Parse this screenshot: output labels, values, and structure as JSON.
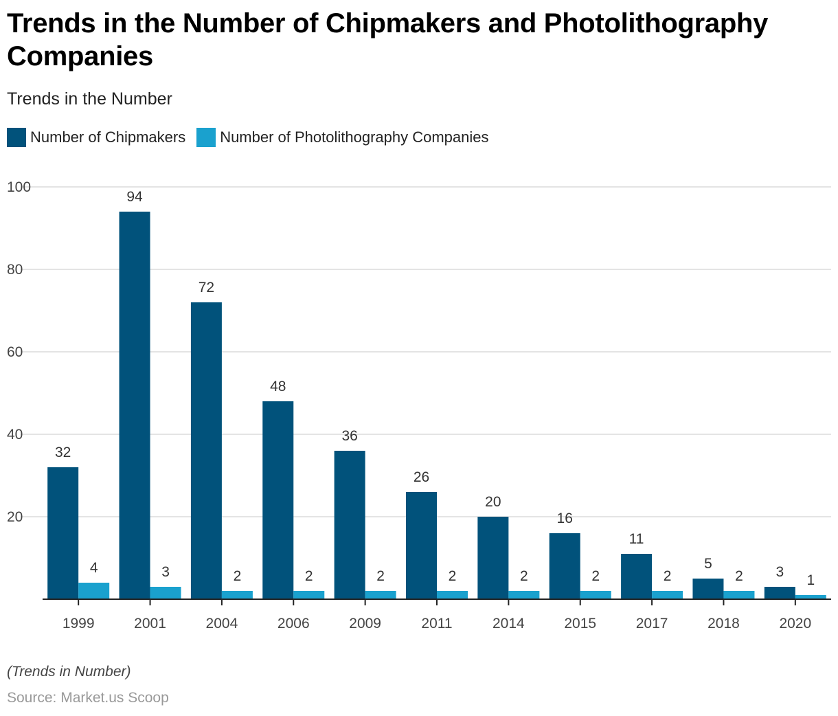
{
  "title": "Trends in the Number of Chipmakers and Photolithography Companies",
  "subtitle": "Trends in the Number",
  "note": "(Trends in Number)",
  "source": "Source: Market.us Scoop",
  "colors": {
    "chipmakers": "#01527b",
    "photolithography": "#1aa1ce",
    "grid": "#dcdcdc",
    "axis": "#222222"
  },
  "chart_data": {
    "type": "bar",
    "title": "Trends in the Number of Chipmakers and Photolithography Companies",
    "subtitle": "Trends in the Number",
    "xlabel": "",
    "ylabel": "",
    "categories": [
      "1999",
      "2001",
      "2004",
      "2006",
      "2009",
      "2011",
      "2014",
      "2015",
      "2017",
      "2018",
      "2020"
    ],
    "series": [
      {
        "name": "Number of Chipmakers",
        "values": [
          32,
          94,
          72,
          48,
          36,
          26,
          20,
          16,
          11,
          5,
          3
        ]
      },
      {
        "name": "Number of Photolithography Companies",
        "values": [
          4,
          3,
          2,
          2,
          2,
          2,
          2,
          2,
          2,
          2,
          1
        ]
      }
    ],
    "ylim": [
      0,
      100
    ],
    "yticks": [
      0,
      20,
      40,
      60,
      80,
      100
    ],
    "ytick_labels": [
      "",
      "20",
      "40",
      "60",
      "80",
      "100"
    ],
    "grid": true,
    "legend": "top-left",
    "data_labels": true
  }
}
